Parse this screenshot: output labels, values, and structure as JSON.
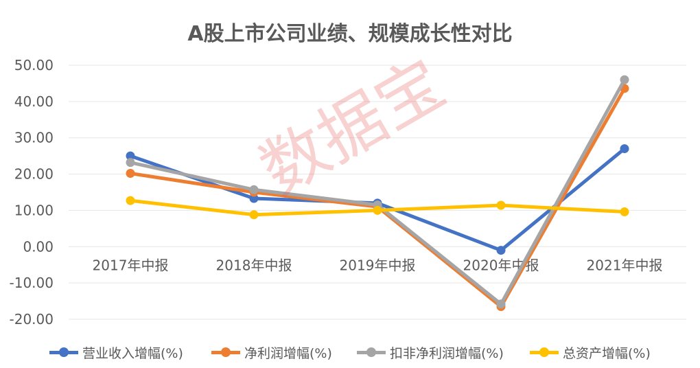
{
  "chart_data": {
    "type": "line",
    "title": "A股上市公司业绩、规模成长性对比",
    "categories": [
      "2017年中报",
      "2018年中报",
      "2019年中报",
      "2020年中报",
      "2021年中报"
    ],
    "ylim": [
      -20,
      50
    ],
    "yticks": [
      "50.00",
      "40.00",
      "30.00",
      "20.00",
      "10.00",
      "0.00",
      "-10.00",
      "-20.00"
    ],
    "grid": true,
    "legend_position": "bottom",
    "series": [
      {
        "name": "营业收入增幅(%)",
        "color": "#4472C4",
        "values": [
          25.0,
          13.3,
          12.0,
          -1.0,
          27.0
        ]
      },
      {
        "name": "净利润增幅(%)",
        "color": "#ED7D31",
        "values": [
          20.2,
          15.0,
          11.0,
          -16.5,
          43.6
        ]
      },
      {
        "name": "扣非净利润增幅(%)",
        "color": "#A5A5A5",
        "values": [
          23.2,
          15.7,
          11.5,
          -15.8,
          46.0
        ]
      },
      {
        "name": "总资产增幅(%)",
        "color": "#FFC000",
        "values": [
          12.7,
          8.8,
          10.0,
          11.4,
          9.6
        ]
      }
    ]
  },
  "watermark": "数据宝"
}
